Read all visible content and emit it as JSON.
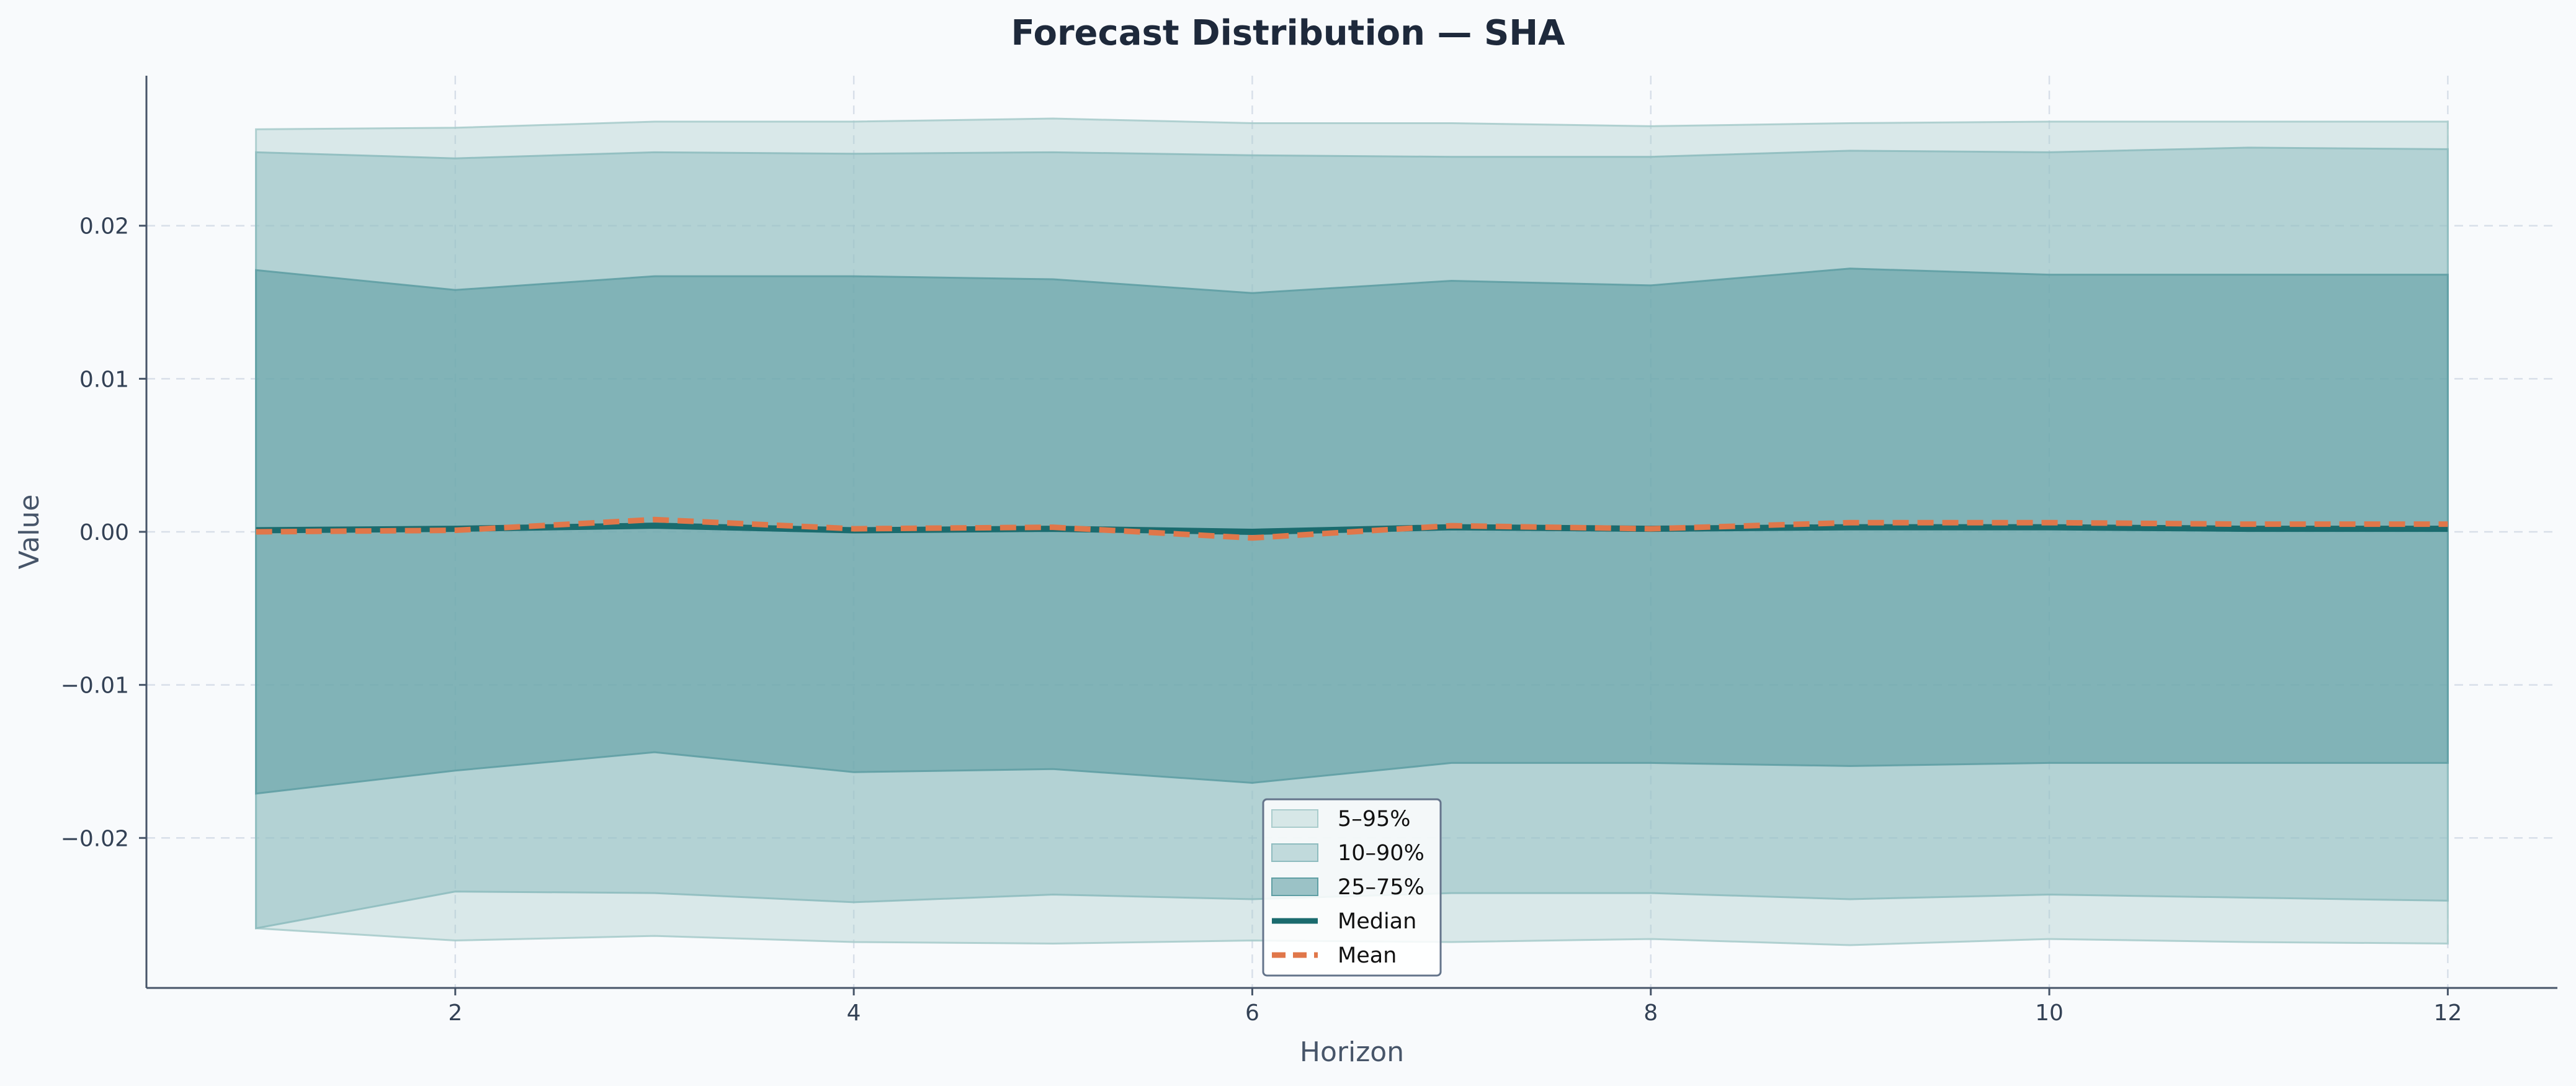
{
  "chart_data": {
    "type": "area",
    "title": "Forecast Distribution — SHA",
    "xlabel": "Horizon",
    "ylabel": "Value",
    "xlim": [
      0.45,
      12.55
    ],
    "ylim": [
      -0.0298,
      0.0298
    ],
    "x_ticks": [
      2,
      4,
      6,
      8,
      10,
      12
    ],
    "y_ticks": [
      -0.02,
      -0.01,
      0.0,
      0.01,
      0.02
    ],
    "x_tick_labels": [
      "2",
      "4",
      "6",
      "8",
      "10",
      "12"
    ],
    "y_tick_labels": [
      "−0.02",
      "−0.01",
      "0.00",
      "0.01",
      "0.02"
    ],
    "grid": true,
    "legend_position": "bottom-center",
    "x": [
      1,
      2,
      3,
      4,
      5,
      6,
      7,
      8,
      9,
      10,
      11,
      12
    ],
    "bands": [
      {
        "name": "5–95%",
        "color": "#a9cccc",
        "opacity": 0.4,
        "lower": [
          -0.0259,
          -0.0267,
          -0.0264,
          -0.0268,
          -0.0269,
          -0.0267,
          -0.0268,
          -0.0266,
          -0.027,
          -0.0266,
          -0.0268,
          -0.0269
        ],
        "upper": [
          0.0263,
          0.0264,
          0.0268,
          0.0268,
          0.027,
          0.0267,
          0.0267,
          0.0265,
          0.0267,
          0.0268,
          0.0268,
          0.0268
        ]
      },
      {
        "name": "10–90%",
        "color": "#8ebcbf",
        "opacity": 0.5,
        "lower": [
          -0.0259,
          -0.0235,
          -0.0236,
          -0.0242,
          -0.0237,
          -0.024,
          -0.0236,
          -0.0236,
          -0.024,
          -0.0237,
          -0.0239,
          -0.0241
        ],
        "upper": [
          0.0248,
          0.0244,
          0.0248,
          0.0247,
          0.0248,
          0.0246,
          0.0245,
          0.0245,
          0.0249,
          0.0248,
          0.0251,
          0.025
        ]
      },
      {
        "name": "25–75%",
        "color": "#5f9fa4",
        "opacity": 0.6,
        "lower": [
          -0.0171,
          -0.0156,
          -0.0144,
          -0.0157,
          -0.0155,
          -0.0164,
          -0.0151,
          -0.0151,
          -0.0153,
          -0.0151,
          -0.0151,
          -0.0151
        ],
        "upper": [
          0.0171,
          0.0158,
          0.0167,
          0.0167,
          0.0165,
          0.0156,
          0.0164,
          0.0161,
          0.0172,
          0.0168,
          0.0168,
          0.0168
        ]
      }
    ],
    "series": [
      {
        "name": "Median",
        "color": "#1a6b6e",
        "style": "solid",
        "values": [
          0.0001,
          0.0002,
          0.0004,
          0.0001,
          0.0002,
          0.0,
          0.0003,
          0.0002,
          0.0003,
          0.0003,
          0.0002,
          0.0002
        ]
      },
      {
        "name": "Mean",
        "color": "#e0774a",
        "style": "dashed",
        "values": [
          0.0,
          0.0001,
          0.0008,
          0.0002,
          0.0003,
          -0.0004,
          0.0004,
          0.0002,
          0.0006,
          0.0006,
          0.0005,
          0.0005
        ]
      }
    ]
  }
}
